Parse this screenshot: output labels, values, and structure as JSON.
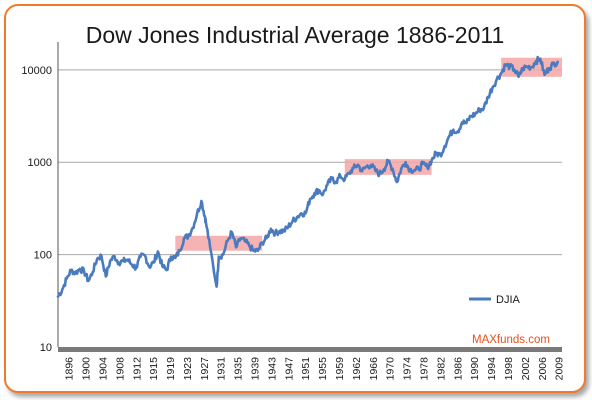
{
  "chart_data": {
    "type": "line",
    "title": "Dow Jones Industrial Average  1886-2011",
    "yscale": "log",
    "ylim": [
      10,
      20000
    ],
    "xlim": [
      1896,
      2012
    ],
    "y_ticks": [
      "10",
      "100",
      "1000",
      "10000"
    ],
    "x_ticks": [
      "1896",
      "1900",
      "1904",
      "1908",
      "1912",
      "1915",
      "1919",
      "1923",
      "1927",
      "1931",
      "1935",
      "1939",
      "1943",
      "1947",
      "1951",
      "1955",
      "1959",
      "1962",
      "1966",
      "1970",
      "1974",
      "1978",
      "1982",
      "1986",
      "1990",
      "1994",
      "1998",
      "2002",
      "2006",
      "2009"
    ],
    "grid": "horizontal",
    "legend_position": "right",
    "series": [
      {
        "name": "DJIA",
        "color": "#4a7bbf",
        "x": [
          1896,
          1897,
          1898,
          1899,
          1900,
          1901,
          1902,
          1903,
          1904,
          1905,
          1906,
          1907,
          1908,
          1909,
          1910,
          1911,
          1912,
          1913,
          1914,
          1915,
          1916,
          1917,
          1918,
          1919,
          1920,
          1921,
          1922,
          1923,
          1924,
          1925,
          1926,
          1927,
          1928,
          1929,
          1929.8,
          1930,
          1931,
          1932.5,
          1933,
          1934,
          1935,
          1936,
          1937,
          1938,
          1939,
          1940,
          1941,
          1942,
          1943,
          1944,
          1945,
          1946,
          1947,
          1948,
          1949,
          1950,
          1951,
          1952,
          1953,
          1954,
          1955,
          1956,
          1957,
          1958,
          1959,
          1960,
          1961,
          1962,
          1963,
          1964,
          1965,
          1966,
          1967,
          1968,
          1969,
          1970,
          1971,
          1972,
          1973,
          1974,
          1975,
          1976,
          1977,
          1978,
          1979,
          1980,
          1981,
          1982,
          1983,
          1984,
          1985,
          1986,
          1987,
          1988,
          1989,
          1990,
          1991,
          1992,
          1993,
          1994,
          1995,
          1996,
          1997,
          1998,
          1999,
          2000,
          2001,
          2002,
          2003,
          2004,
          2005,
          2006,
          2007,
          2008,
          2009,
          2010,
          2011
        ],
        "values": [
          35,
          42,
          55,
          68,
          63,
          70,
          66,
          52,
          65,
          90,
          97,
          58,
          85,
          96,
          82,
          85,
          88,
          78,
          72,
          95,
          98,
          74,
          82,
          108,
          75,
          68,
          95,
          92,
          110,
          150,
          160,
          195,
          275,
          380,
          260,
          230,
          120,
          45,
          95,
          100,
          140,
          175,
          120,
          150,
          140,
          125,
          110,
          110,
          135,
          150,
          190,
          170,
          180,
          180,
          200,
          230,
          255,
          280,
          280,
          400,
          460,
          500,
          450,
          570,
          660,
          615,
          710,
          650,
          760,
          860,
          940,
          800,
          900,
          930,
          820,
          740,
          840,
          1020,
          850,
          610,
          850,
          1000,
          830,
          820,
          840,
          960,
          880,
          1050,
          1250,
          1200,
          1500,
          1900,
          2250,
          2150,
          2700,
          2650,
          3150,
          3300,
          3700,
          3850,
          5100,
          6450,
          7900,
          9200,
          11400,
          10800,
          10100,
          8400,
          10400,
          10800,
          10700,
          12400,
          13200,
          8800,
          10400,
          11500,
          12200
        ]
      }
    ],
    "highlights": [
      {
        "x": [
          1923,
          1943
        ],
        "y": [
          110,
          160
        ]
      },
      {
        "x": [
          1962,
          1982
        ],
        "y": [
          730,
          1080
        ]
      },
      {
        "x": [
          1998,
          2012
        ],
        "y": [
          8400,
          13500
        ]
      }
    ],
    "annotations": [
      {
        "text": "MAXfunds.com",
        "color": "#e8501c"
      }
    ]
  }
}
